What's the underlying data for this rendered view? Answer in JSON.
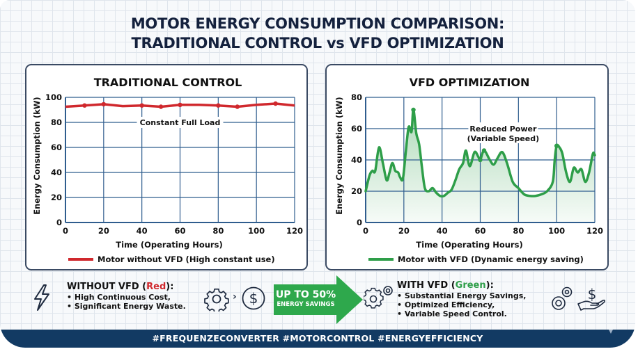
{
  "title": {
    "line1": "MOTOR ENERGY CONSUMPTION COMPARISON:",
    "line2": "TRADITIONAL CONTROL vs VFD OPTIMIZATION"
  },
  "colors": {
    "title": "#14213d",
    "red_series": "#d0282d",
    "green_series": "#2e9e49",
    "grid": "#2f5d8e",
    "footer": "#123a63"
  },
  "chart_data": [
    {
      "type": "line",
      "title": "TRADITIONAL CONTROL",
      "xlabel": "Time (Operating Hours)",
      "ylabel": "Energy Consumption (kW)",
      "xlim": [
        0,
        120
      ],
      "ylim": [
        0,
        100
      ],
      "xticks": [
        "0",
        "20",
        "40",
        "60",
        "80",
        "100",
        "120"
      ],
      "yticks": [
        "0",
        "20",
        "40",
        "60",
        "80",
        "100"
      ],
      "grid": true,
      "annotation": "Constant Full Load",
      "legend_position": "bottom",
      "series": [
        {
          "name": "Motor without VFD (High constant use)",
          "color": "#d0282d",
          "x": [
            0,
            10,
            20,
            30,
            40,
            50,
            60,
            70,
            80,
            90,
            100,
            110,
            120
          ],
          "y": [
            92.5,
            93.5,
            94.5,
            93,
            93.5,
            92.5,
            94,
            94,
            93.5,
            92.5,
            94,
            95,
            93.5
          ],
          "markers_x": [
            10,
            20,
            40,
            50,
            60,
            80,
            90,
            110
          ]
        }
      ]
    },
    {
      "type": "area",
      "title": "VFD OPTIMIZATION",
      "xlabel": "Time (Operating Hours)",
      "ylabel": "Energy Consumption (kW)",
      "xlim": [
        0,
        120
      ],
      "ylim": [
        0,
        80
      ],
      "xticks": [
        "0",
        "20",
        "40",
        "60",
        "80",
        "100",
        "120"
      ],
      "yticks": [
        "0",
        "20",
        "40",
        "60",
        "80"
      ],
      "grid": true,
      "annotation": [
        "Reduced Power",
        "(Variable Speed)"
      ],
      "legend_position": "bottom",
      "series": [
        {
          "name": "Motor with VFD (Dynamic energy saving)",
          "color": "#2e9e49",
          "x": [
            0,
            2,
            3.5,
            5,
            7,
            9,
            11,
            12.5,
            14,
            15.5,
            17,
            18,
            19.5,
            21,
            22.5,
            24,
            25,
            26.5,
            28,
            29.5,
            31,
            33,
            35,
            37,
            39,
            41,
            43,
            45,
            47,
            49,
            51,
            52.5,
            54.5,
            57,
            59,
            60,
            62,
            65,
            67,
            69,
            71.5,
            74,
            77,
            80,
            83,
            86,
            89,
            92,
            95,
            98,
            99,
            100,
            101.5,
            103,
            105,
            107,
            109,
            111,
            113,
            115,
            117,
            119,
            120
          ],
          "y": [
            20,
            30,
            33,
            33,
            48,
            38,
            27,
            32,
            38,
            33,
            32,
            29,
            28,
            45,
            61,
            58,
            72,
            57,
            50,
            35,
            22,
            20,
            22,
            19,
            17,
            17,
            19,
            21,
            27,
            34,
            38,
            46,
            36,
            45,
            42,
            40,
            46,
            40,
            37,
            41,
            45,
            38,
            26,
            22,
            18,
            17,
            17,
            18,
            20,
            26,
            40,
            49,
            48,
            44,
            32,
            26,
            35,
            32,
            34,
            26,
            32,
            44,
            43
          ],
          "markers": [
            [
              25,
              72
            ],
            [
              60,
              40
            ],
            [
              62,
              46
            ],
            [
              100,
              49
            ]
          ]
        }
      ]
    }
  ],
  "bottom": {
    "without": {
      "heading_prefix": "WITHOUT VFD (",
      "heading_color_word": "Red",
      "heading_suffix": "):",
      "items": [
        "• High Continuous Cost,",
        "• Significant Energy Waste."
      ]
    },
    "arrow": {
      "line1": "UP TO 50%",
      "line2": "ENERGY SAVINGS"
    },
    "with": {
      "heading_prefix": "WITH VFD (",
      "heading_color_word": "Green",
      "heading_suffix": "):",
      "items": [
        "• Substantial Energy Savings,",
        "• Optimized Efficiency,",
        "• Variable Speed Control."
      ]
    },
    "icons": {
      "lightning": "lightning-icon",
      "gear": "gear-icon",
      "chevron": "chevron-right-icon",
      "dollar": "dollar-coin-icon",
      "gears": "gears-icon",
      "hand_dollar": "hand-dollar-icon"
    },
    "chevron_glyph": "›"
  },
  "footer": {
    "hashtags": "#FREQUENZECONVERTER #MOTORCONTROL #ENERGYEFFICIENCY"
  }
}
